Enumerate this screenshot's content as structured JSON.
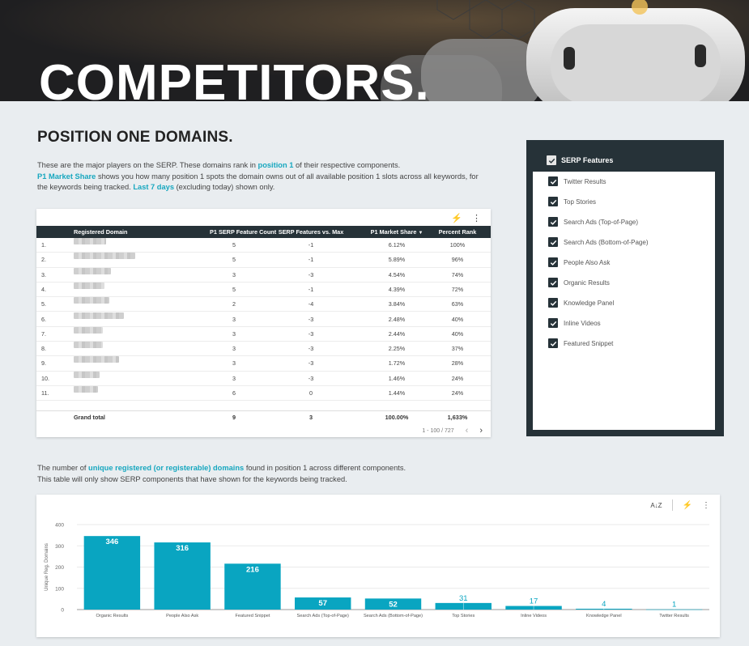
{
  "hero": {
    "title": "COMPETITORS."
  },
  "section1": {
    "title": "POSITION ONE DOMAINS.",
    "intro": {
      "l1_a": "These are the major players on the SERP. These domains rank in ",
      "l1_hl": "position 1",
      "l1_b": " of their respective components.",
      "l2_hl": "P1 Market Share",
      "l2_a": " shows you how many position 1 spots the domain owns out of all available position 1 slots across all keywords, for the keywords being tracked. ",
      "l2_hl2": "Last 7 days",
      "l2_b": " (excluding today) shown only."
    }
  },
  "table": {
    "headers": {
      "domain": "Registered Domain",
      "count": "P1 SERP Feature Count",
      "vs_max": "SERP Features vs. Max",
      "share": "P1 Market Share",
      "pct": "Percent Rank"
    },
    "sort_indicator": "▼",
    "rows": [
      {
        "rank": "1.",
        "count": "5",
        "vs": "-1",
        "share": "6.12%",
        "pct": "100%"
      },
      {
        "rank": "2.",
        "count": "5",
        "vs": "-1",
        "share": "5.89%",
        "pct": "96%"
      },
      {
        "rank": "3.",
        "count": "3",
        "vs": "-3",
        "share": "4.54%",
        "pct": "74%"
      },
      {
        "rank": "4.",
        "count": "5",
        "vs": "-1",
        "share": "4.39%",
        "pct": "72%"
      },
      {
        "rank": "5.",
        "count": "2",
        "vs": "-4",
        "share": "3.84%",
        "pct": "63%"
      },
      {
        "rank": "6.",
        "count": "3",
        "vs": "-3",
        "share": "2.48%",
        "pct": "40%"
      },
      {
        "rank": "7.",
        "count": "3",
        "vs": "-3",
        "share": "2.44%",
        "pct": "40%"
      },
      {
        "rank": "8.",
        "count": "3",
        "vs": "-3",
        "share": "2.25%",
        "pct": "37%"
      },
      {
        "rank": "9.",
        "count": "3",
        "vs": "-3",
        "share": "1.72%",
        "pct": "28%"
      },
      {
        "rank": "10.",
        "count": "3",
        "vs": "-3",
        "share": "1.46%",
        "pct": "24%"
      },
      {
        "rank": "11.",
        "count": "6",
        "vs": "0",
        "share": "1.44%",
        "pct": "24%"
      }
    ],
    "total": {
      "label": "Grand total",
      "count": "9",
      "vs": "3",
      "share": "100.00%",
      "pct": "1,633%"
    },
    "pagination": "1 - 100 / 727"
  },
  "filter": {
    "title": "SERP Features",
    "items": [
      "Twitter Results",
      "Top Stories",
      "Search Ads (Top-of-Page)",
      "Search Ads (Bottom-of-Page)",
      "People Also Ask",
      "Organic Results",
      "Knowledge Panel",
      "Inline Videos",
      "Featured Snippet"
    ]
  },
  "section2": {
    "l1_a": "The number of ",
    "l1_hl": "unique registered (or registerable) domains",
    "l1_b": " found in position 1 across different components.",
    "l2": "This table will only show SERP components that have shown for the keywords being tracked."
  },
  "chart_data": {
    "type": "bar",
    "categories": [
      "Organic Results",
      "People Also Ask",
      "Featured Snippet",
      "Search Ads (Top-of-Page)",
      "Search Ads (Bottom-of-Page)",
      "Top Stories",
      "Inline Videos",
      "Knowledge Panel",
      "Twitter Results"
    ],
    "values": [
      346,
      316,
      216,
      57,
      52,
      31,
      17,
      4,
      1
    ],
    "ylabel": "Unique Reg. Domains",
    "yticks": [
      0,
      100,
      200,
      300,
      400
    ],
    "ylim": [
      0,
      400
    ],
    "grid": true,
    "color": "#09a5c1"
  },
  "colors": {
    "accent": "#17a7bf",
    "dark": "#263238",
    "bar": "#09a5c1"
  },
  "icons": {
    "bolt": "⚡",
    "more": "⋮",
    "sort_az": "A↓Z",
    "prev": "‹",
    "next": "›"
  }
}
